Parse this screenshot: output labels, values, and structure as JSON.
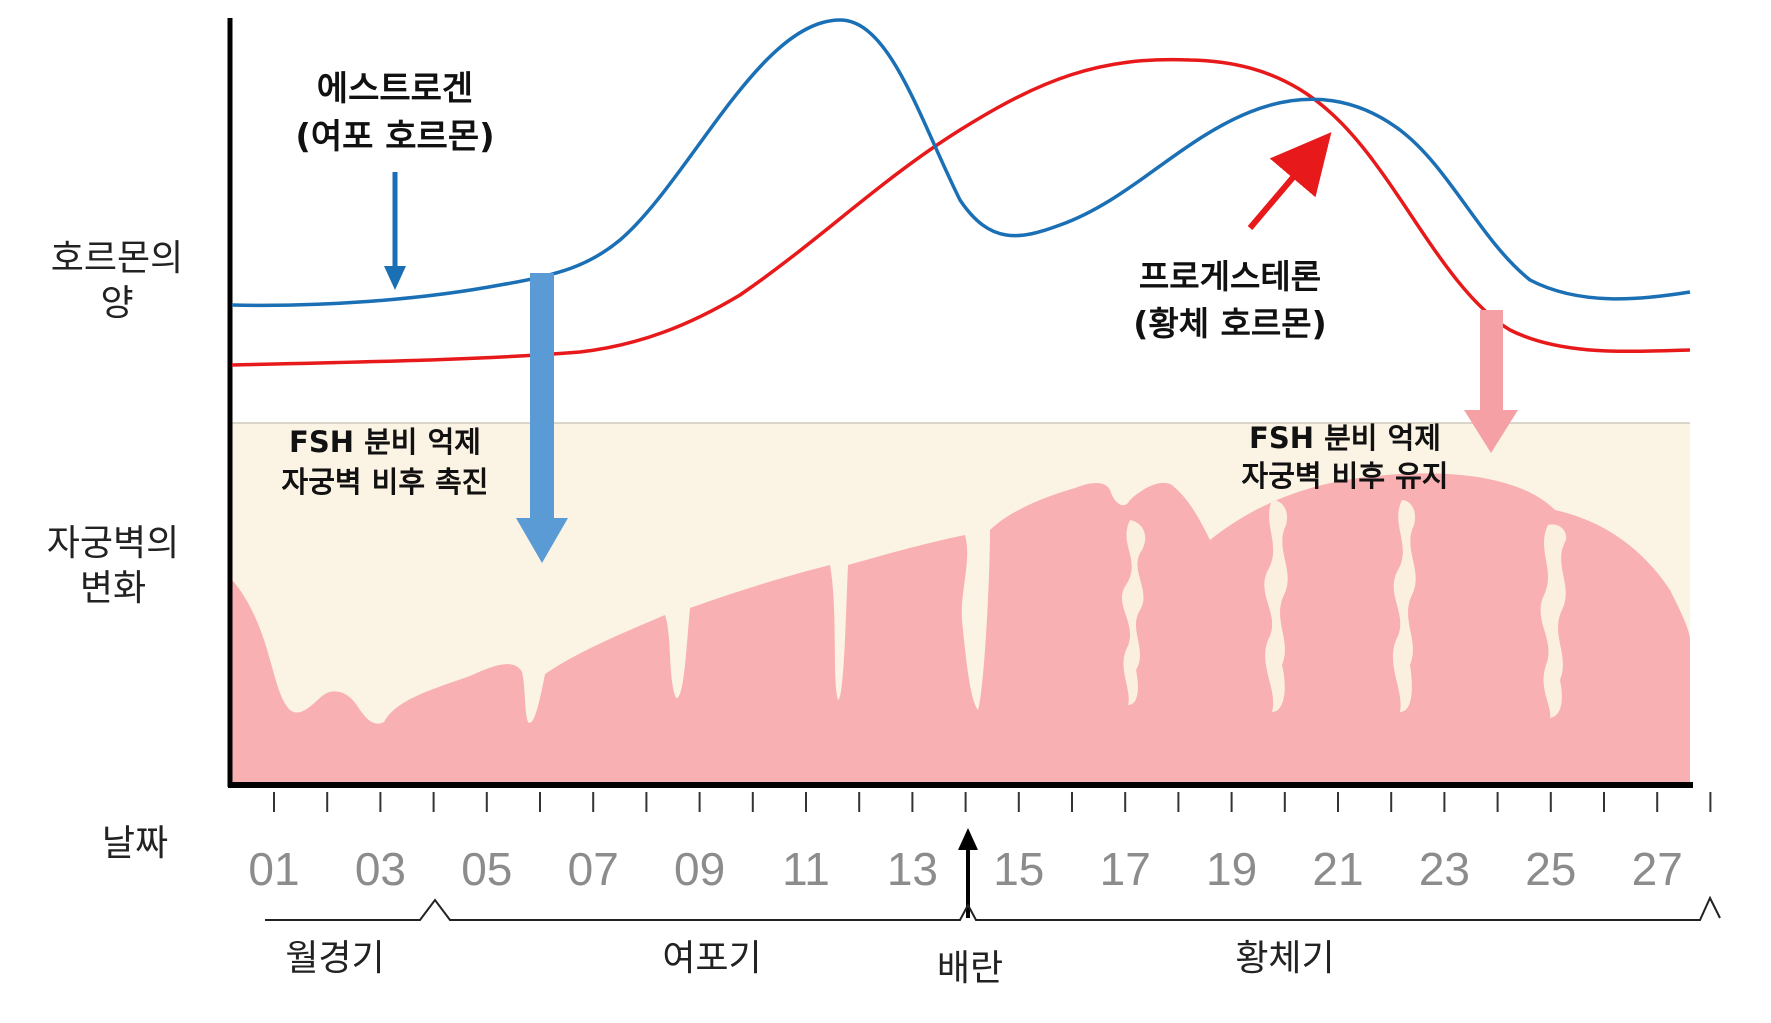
{
  "estrogen_label": {
    "line1": "에스트로겐",
    "line2": "(여포 호르몬)"
  },
  "progesterone_label": {
    "line1": "프로게스테론",
    "line2": "(황체 호르몬)"
  },
  "effect_left": {
    "line1": "FSH 분비 억제",
    "line2": "자궁벽 비후 촉진"
  },
  "effect_right": {
    "line1": "FSH 분비 억제",
    "line2": "자궁벽 비후 유지"
  },
  "y_labels": {
    "hormone": {
      "line1": "호르몬의",
      "line2": "양"
    },
    "uterus": {
      "line1": "자궁벽의",
      "line2": "변화"
    },
    "days": "날짜"
  },
  "day_ticks": [
    "01",
    "03",
    "05",
    "07",
    "09",
    "11",
    "13",
    "15",
    "17",
    "19",
    "21",
    "23",
    "25",
    "27"
  ],
  "phases": {
    "menstrual": "월경기",
    "follicular": "여포기",
    "ovulation": "배란",
    "luteal": "황체기"
  },
  "colors": {
    "estrogen": "#1a6fb5",
    "progesterone": "#e8191a",
    "arrow_blue": "#5b9bd5",
    "arrow_pink": "#f4a0a4",
    "uterus_band": "#fbf4e4",
    "uterus_tissue": "#f9b0b3"
  }
}
